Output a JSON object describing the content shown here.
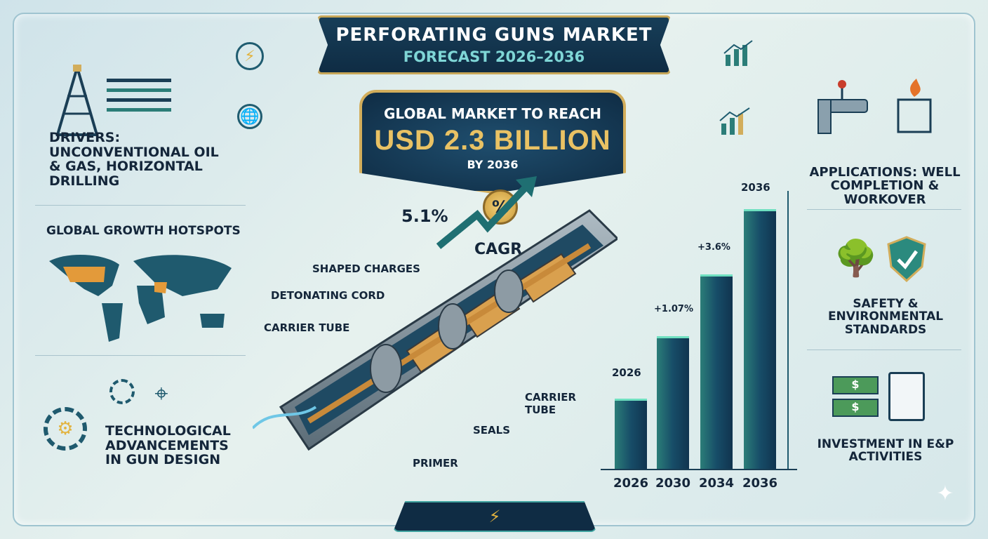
{
  "header": {
    "title": "PERFORATING GUNS MARKET",
    "subtitle": "FORECAST 2026–2036"
  },
  "headline": {
    "line1": "GLOBAL MARKET TO REACH",
    "value": "USD 2.3 BILLION",
    "line3": "BY 2036"
  },
  "cagr": {
    "value": "5.1%",
    "label": "CAGR",
    "symbol": "%"
  },
  "left_panel": [
    {
      "label": "DRIVERS: UNCONVENTIONAL OIL & GAS, HORIZONTAL DRILLING",
      "icon": "oil-rig-icon"
    },
    {
      "label": "GLOBAL GROWTH HOTSPOTS",
      "icon": "world-map-icon"
    },
    {
      "label": "TECHNOLOGICAL ADVANCEMENTS IN GUN DESIGN",
      "icon": "gear-icon"
    }
  ],
  "right_panel": [
    {
      "label": "APPLICATIONS: WELL COMPLETION & WORKOVER",
      "icon": "pipeline-icon"
    },
    {
      "label": "SAFETY & ENVIRONMENTAL STANDARDS",
      "icon": "shield-check-icon"
    },
    {
      "label": "INVESTMENT IN E&P ACTIVITIES",
      "icon": "money-document-icon"
    }
  ],
  "diagram_parts": {
    "shaped_charges": "SHAPED CHARGES",
    "detonating_cord": "DETONATING CORD",
    "carrier_tube_left": "CARRIER TUBE",
    "carrier_tube_right": "CARRIER TUBE",
    "seals": "SEALS",
    "primer": "PRIMER"
  },
  "chart_data": {
    "type": "bar",
    "categories": [
      "2026",
      "2030",
      "2034",
      "2036"
    ],
    "values": [
      27,
      51,
      75,
      100
    ],
    "bar_labels": [
      "2026",
      "+1.07%",
      "+3.6%",
      "2036"
    ],
    "ylabel": "",
    "grid": false
  },
  "colors": {
    "navy": "#0f2c44",
    "gold": "#d2ad5b",
    "teal": "#2b7d78",
    "accent": "#6fe0c0"
  }
}
